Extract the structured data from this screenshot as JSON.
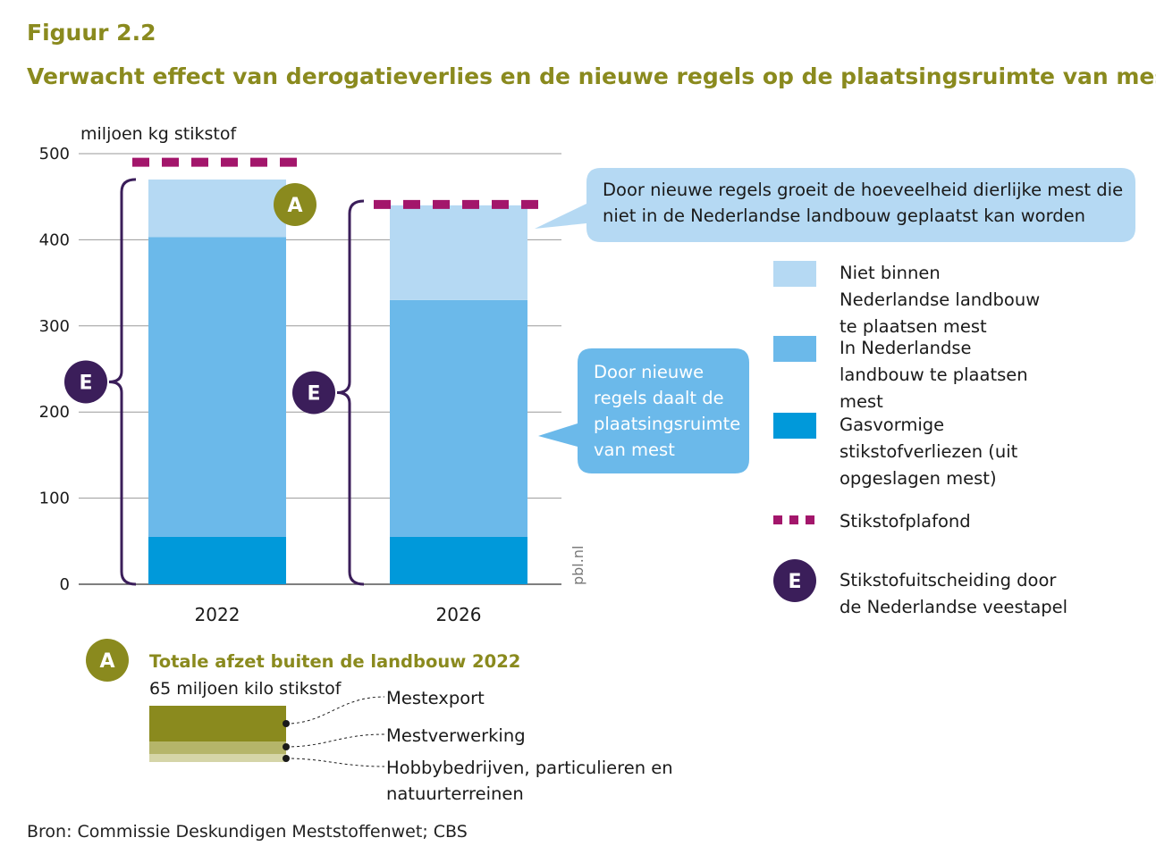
{
  "figure": {
    "number": "Figuur 2.2",
    "title": "Verwacht effect van derogatieverlies en de nieuwe regels op de plaatsingsruimte van mest",
    "source": "Bron: Commissie Deskundigen Meststoffenwet; CBS",
    "watermark": "pbl.nl"
  },
  "chart_data": {
    "type": "bar",
    "stacked": true,
    "ylabel": "miljoen kg stikstof",
    "ylim": [
      0,
      500
    ],
    "yticks": [
      0,
      100,
      200,
      300,
      400,
      500
    ],
    "grid": true,
    "categories": [
      "2022",
      "2026"
    ],
    "series": [
      {
        "name": "Gasvormige stikstofverliezen (uit opgeslagen mest)",
        "values": [
          55,
          55
        ],
        "color": "#0099da"
      },
      {
        "name": "In Nederlandse landbouw te plaatsen mest",
        "values": [
          348,
          275
        ],
        "color": "#6bb9ea"
      },
      {
        "name": "Niet binnen Nederlandse landbouw te plaatsen mest",
        "values": [
          67,
          110
        ],
        "color": "#b5d9f3"
      }
    ],
    "stikstofplafond": {
      "name": "Stikstofplafond",
      "values": [
        490,
        441
      ],
      "color": "#a3166b"
    },
    "annotations": [
      {
        "text": "Door nieuwe regels groeit de hoeveelheid dierlijke mest die niet in de Nederlandse landbouw geplaatst kan worden"
      },
      {
        "text": "Door nieuwe regels daalt de plaatsingsruimte van mest"
      }
    ]
  },
  "legend": {
    "items": [
      {
        "label": "Niet binnen Nederlandse landbouw te plaatsen mest",
        "color": "#b5d9f3",
        "kind": "swatch"
      },
      {
        "label": "In Nederlandse landbouw te plaatsen mest",
        "color": "#6bb9ea",
        "kind": "swatch"
      },
      {
        "label": "Gasvormige stikstofverliezen (uit opgeslagen mest)",
        "color": "#0099da",
        "kind": "swatch"
      },
      {
        "label": "Stikstofplafond",
        "color": "#a3166b",
        "kind": "dashed"
      },
      {
        "label": "Stikstofuitscheiding door de Nederlandse veestapel",
        "color": "#3b1e5a",
        "kind": "badge",
        "badge": "E"
      }
    ]
  },
  "badges": {
    "a": "A",
    "e": "E",
    "a_color": "#8a8a1e",
    "e_color": "#3b1e5a"
  },
  "inset": {
    "title": "Totale afzet buiten de landbouw 2022",
    "subtitle": "65 miljoen kilo stikstof",
    "items": [
      {
        "label": "Mestexport",
        "color": "#8a8a1e"
      },
      {
        "label": "Mestverwerking",
        "color": "#b5b56a"
      },
      {
        "label": "Hobbybedrijven, particulieren en natuurterreinen",
        "color": "#d5d5a8"
      }
    ]
  }
}
